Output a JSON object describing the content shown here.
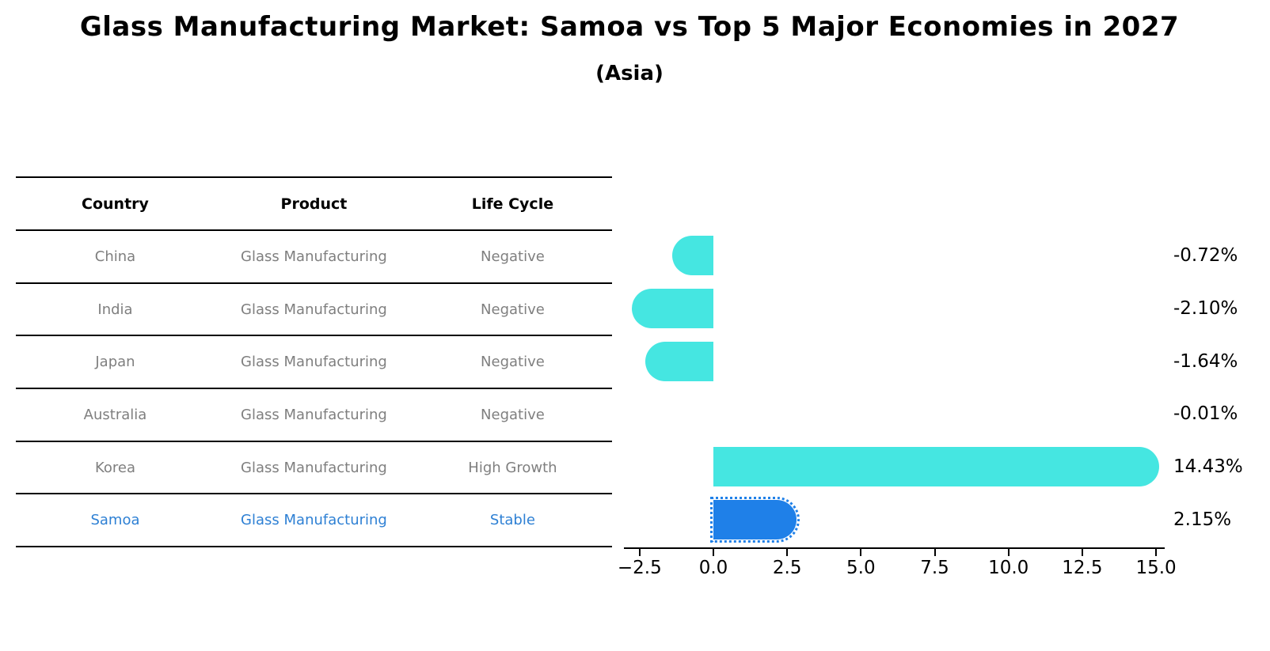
{
  "title": "Glass Manufacturing Market: Samoa vs Top 5 Major Economies in 2027",
  "subtitle": "(Asia)",
  "table": {
    "headers": [
      "Country",
      "Product",
      "Life Cycle"
    ],
    "rows": [
      {
        "country": "China",
        "product": "Glass Manufacturing",
        "life_cycle": "Negative",
        "highlight": false
      },
      {
        "country": "India",
        "product": "Glass Manufacturing",
        "life_cycle": "Negative",
        "highlight": false
      },
      {
        "country": "Japan",
        "product": "Glass Manufacturing",
        "life_cycle": "Negative",
        "highlight": false
      },
      {
        "country": "Australia",
        "product": "Glass Manufacturing",
        "life_cycle": "Negative",
        "highlight": false
      },
      {
        "country": "Korea",
        "product": "Glass Manufacturing",
        "life_cycle": "High Growth",
        "highlight": false
      },
      {
        "country": "Samoa",
        "product": "Glass Manufacturing",
        "life_cycle": "Stable",
        "highlight": true
      }
    ]
  },
  "chart_data": {
    "type": "bar",
    "orientation": "horizontal",
    "title": "Glass Manufacturing Market: Samoa vs Top 5 Major Economies in 2027 (Asia)",
    "categories": [
      "China",
      "India",
      "Japan",
      "Australia",
      "Korea",
      "Samoa"
    ],
    "values": [
      -0.72,
      -2.1,
      -1.64,
      -0.01,
      14.43,
      2.15
    ],
    "value_labels": [
      "-0.72%",
      "-2.10%",
      "-1.64%",
      "-0.01%",
      "14.43%",
      "2.15%"
    ],
    "highlight_index": 5,
    "x_tick_values": [
      -2.5,
      0,
      2.5,
      5,
      7.5,
      10,
      12.5,
      15
    ],
    "x_tick_labels": [
      "−2.5",
      "0.0",
      "2.5",
      "5.0",
      "7.5",
      "10.0",
      "12.5",
      "15.0"
    ],
    "xlim": [
      -3.0,
      15.3
    ],
    "grid": false,
    "legend": null,
    "bar_color_default": "#45e6e1",
    "bar_color_highlight": "#1f80e8",
    "highlight_text_color": "#2e80d4",
    "rounded_caps": true
  }
}
